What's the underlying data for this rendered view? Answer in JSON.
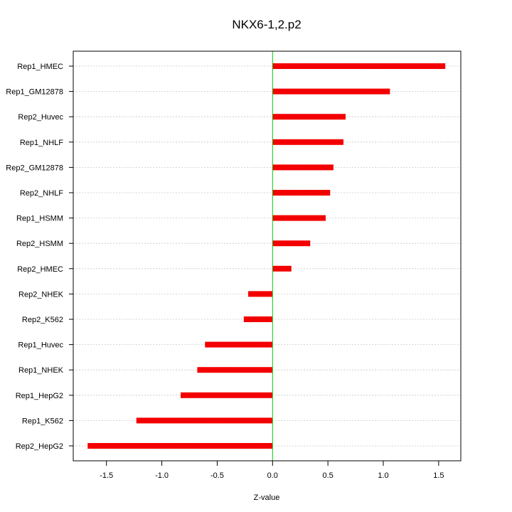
{
  "chart_data": {
    "type": "bar",
    "orientation": "horizontal",
    "title": "NKX6-1,2.p2",
    "xlabel": "Z-value",
    "ylabel": "",
    "xlim": [
      -1.8,
      1.7
    ],
    "xticks": [
      -1.5,
      -1.0,
      -0.5,
      0.0,
      0.5,
      1.0,
      1.5
    ],
    "xtick_labels": [
      "-1.5",
      "-1.0",
      "-0.5",
      "0.0",
      "0.5",
      "1.0",
      "1.5"
    ],
    "grid": true,
    "reference_line": 0.0,
    "categories": [
      "Rep1_HMEC",
      "Rep1_GM12878",
      "Rep2_Huvec",
      "Rep1_NHLF",
      "Rep2_GM12878",
      "Rep2_NHLF",
      "Rep1_HSMM",
      "Rep2_HSMM",
      "Rep2_HMEC",
      "Rep2_NHEK",
      "Rep2_K562",
      "Rep1_Huvec",
      "Rep1_NHEK",
      "Rep1_HepG2",
      "Rep1_K562",
      "Rep2_HepG2"
    ],
    "values": [
      1.56,
      1.06,
      0.66,
      0.64,
      0.55,
      0.52,
      0.48,
      0.34,
      0.17,
      -0.22,
      -0.26,
      -0.61,
      -0.68,
      -0.83,
      -1.23,
      -1.67
    ],
    "colors": {
      "bar": "#ff0000",
      "bar_texture": "#d40000",
      "reference_line": "#00cc00",
      "grid": "#c8c8c8",
      "axis": "#000000"
    }
  }
}
